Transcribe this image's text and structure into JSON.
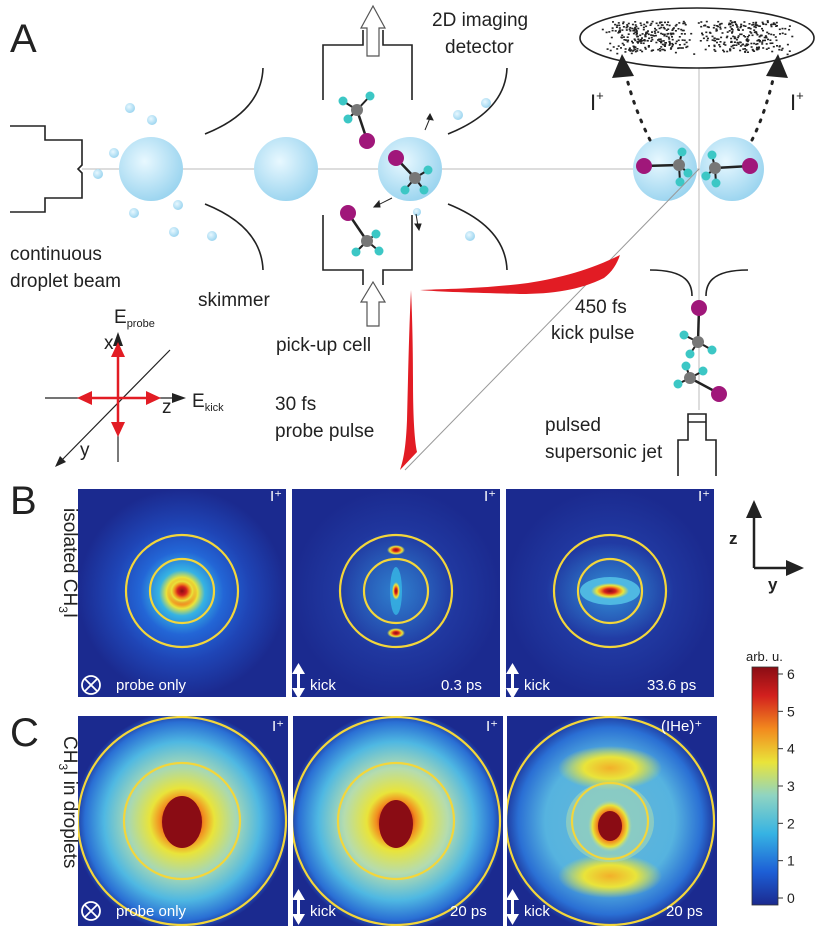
{
  "panel_a": {
    "letter": "A",
    "labels": {
      "detector": [
        "2D imaging",
        "detector"
      ],
      "ion_left": "I",
      "ion_right": "I",
      "ion_charge": "+",
      "beam": [
        "continuous",
        "droplet beam"
      ],
      "skimmer": "skimmer",
      "pickup": "pick-up cell",
      "kick": [
        "450 fs",
        "kick pulse"
      ],
      "probe": [
        "30 fs",
        "probe pulse"
      ],
      "jet": [
        "pulsed",
        "supersonic jet"
      ],
      "axis_x": "x",
      "axis_y": "y",
      "axis_z": "z",
      "e_probe": "E",
      "e_probe_sub": "probe",
      "e_kick": "E",
      "e_kick_sub": "kick"
    }
  },
  "panel_b": {
    "letter": "B",
    "row_label": "isolated CH",
    "row_label_sub": "3",
    "row_label_end": "I",
    "images": [
      {
        "ion": "I⁺",
        "kick": "probe only",
        "time": "",
        "mode": "probe"
      },
      {
        "ion": "I⁺",
        "kick": "kick",
        "time": "0.3 ps",
        "mode": "align"
      },
      {
        "ion": "I⁺",
        "kick": "kick",
        "time": "33.6 ps",
        "mode": "anti"
      }
    ]
  },
  "panel_c": {
    "letter": "C",
    "row_label": "CH",
    "row_label_sub": "3",
    "row_label_end": "I in droplets",
    "images": [
      {
        "ion": "I⁺",
        "kick": "probe only",
        "time": "",
        "mode": "dprobe"
      },
      {
        "ion": "I⁺",
        "kick": "kick",
        "time": "20 ps",
        "mode": "dkick"
      },
      {
        "ion": "(IHe)⁺",
        "kick": "kick",
        "time": "20 ps",
        "mode": "dihe"
      }
    ]
  },
  "axes_zy": {
    "z": "z",
    "y": "y"
  },
  "colorbar": {
    "title": "arb. u.",
    "min": 0,
    "max": 6,
    "ticks": [
      "0",
      "1",
      "2",
      "3",
      "4",
      "5",
      "6"
    ],
    "colors": [
      "#1b2a8f",
      "#1d5fd6",
      "#36b3e3",
      "#8fd4c2",
      "#e9e43a",
      "#f28a1e",
      "#d2201e",
      "#8a0c14"
    ]
  }
}
